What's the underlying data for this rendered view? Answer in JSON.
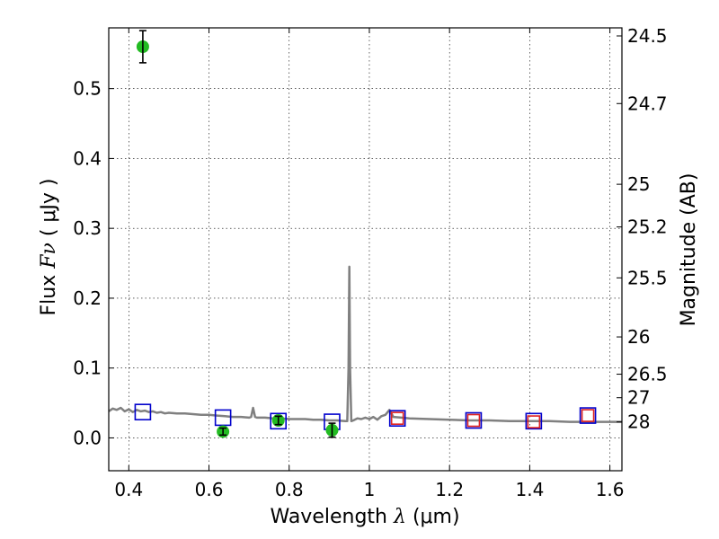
{
  "chart_data": {
    "type": "scatter",
    "title": "",
    "xlabel": "Wavelength",
    "xlabel_symbol": "λ",
    "xlabel_unit": "(μm)",
    "ylabel": "Flux",
    "ylabel_symbol": "Fν",
    "ylabel_unit": "( μJy )",
    "y2label": "Magnitude (AB)",
    "xlim": [
      0.35,
      1.63
    ],
    "ylim": [
      -0.047,
      0.587
    ],
    "grid": true,
    "x_ticks": [
      {
        "value": 0.4,
        "label": "0.4"
      },
      {
        "value": 0.6,
        "label": "0.6"
      },
      {
        "value": 0.8,
        "label": "0.8"
      },
      {
        "value": 1.0,
        "label": "1"
      },
      {
        "value": 1.2,
        "label": "1.2"
      },
      {
        "value": 1.4,
        "label": "1.4"
      },
      {
        "value": 1.6,
        "label": "1.6"
      }
    ],
    "y_ticks": [
      {
        "value": 0.0,
        "label": "0.0"
      },
      {
        "value": 0.1,
        "label": "0.1"
      },
      {
        "value": 0.2,
        "label": "0.2"
      },
      {
        "value": 0.3,
        "label": "0.3"
      },
      {
        "value": 0.4,
        "label": "0.4"
      },
      {
        "value": 0.5,
        "label": "0.5"
      }
    ],
    "y2_ticks": [
      {
        "value": 24.5,
        "label": "24.5"
      },
      {
        "value": 24.7,
        "label": "24.7"
      },
      {
        "value": 25.0,
        "label": "25"
      },
      {
        "value": 25.2,
        "label": "25.2"
      },
      {
        "value": 25.5,
        "label": "25.5"
      },
      {
        "value": 26.0,
        "label": "26"
      },
      {
        "value": 26.5,
        "label": "26.5"
      },
      {
        "value": 27.0,
        "label": "27"
      },
      {
        "value": 28.0,
        "label": "28"
      }
    ],
    "model_spectrum": {
      "color": "#808080",
      "x": [
        0.35,
        0.36,
        0.37,
        0.38,
        0.39,
        0.4,
        0.41,
        0.42,
        0.43,
        0.44,
        0.45,
        0.46,
        0.47,
        0.48,
        0.49,
        0.5,
        0.52,
        0.54,
        0.56,
        0.58,
        0.6,
        0.62,
        0.64,
        0.66,
        0.68,
        0.7,
        0.705,
        0.71,
        0.715,
        0.72,
        0.74,
        0.76,
        0.78,
        0.8,
        0.82,
        0.84,
        0.86,
        0.88,
        0.9,
        0.92,
        0.94,
        0.945,
        0.948,
        0.95,
        0.952,
        0.955,
        0.96,
        0.97,
        0.98,
        0.99,
        1.0,
        1.01,
        1.02,
        1.03,
        1.04,
        1.05,
        1.06,
        1.08,
        1.1,
        1.15,
        1.2,
        1.25,
        1.3,
        1.35,
        1.4,
        1.45,
        1.5,
        1.55,
        1.6,
        1.63
      ],
      "y": [
        0.038,
        0.042,
        0.04,
        0.043,
        0.038,
        0.041,
        0.037,
        0.04,
        0.038,
        0.039,
        0.037,
        0.038,
        0.036,
        0.037,
        0.035,
        0.036,
        0.035,
        0.035,
        0.034,
        0.033,
        0.033,
        0.032,
        0.031,
        0.03,
        0.03,
        0.029,
        0.03,
        0.043,
        0.03,
        0.029,
        0.029,
        0.028,
        0.028,
        0.027,
        0.027,
        0.027,
        0.026,
        0.026,
        0.025,
        0.025,
        0.024,
        0.024,
        0.1,
        0.245,
        0.1,
        0.024,
        0.025,
        0.028,
        0.027,
        0.029,
        0.027,
        0.03,
        0.026,
        0.031,
        0.033,
        0.04,
        0.03,
        0.029,
        0.028,
        0.027,
        0.026,
        0.025,
        0.025,
        0.024,
        0.024,
        0.024,
        0.023,
        0.023,
        0.023,
        0.023
      ]
    },
    "series": [
      {
        "marker": "square",
        "color": "#0000cc",
        "x": [
          0.435,
          0.635,
          0.773,
          0.907,
          1.07,
          1.26,
          1.41,
          1.545
        ],
        "y": [
          0.037,
          0.029,
          0.024,
          0.023,
          0.028,
          0.025,
          0.024,
          0.032
        ]
      },
      {
        "marker": "square",
        "color": "#dd2222",
        "x": [
          1.07,
          1.26,
          1.41,
          1.545
        ],
        "y": [
          0.028,
          0.025,
          0.023,
          0.032
        ]
      },
      {
        "marker": "circle",
        "color": "#22bb22",
        "x": [
          0.435,
          0.635,
          0.773,
          0.907
        ],
        "y": [
          0.56,
          0.009,
          0.025,
          0.011
        ],
        "yerr": [
          0.023,
          0.005,
          0.006,
          0.01
        ]
      }
    ]
  }
}
